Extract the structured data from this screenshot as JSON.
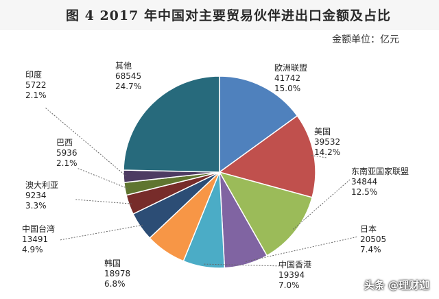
{
  "chart_data": {
    "type": "pie",
    "title": "图 4   2017 年中国对主要贸易伙伴进出口金额及占比",
    "subtitle": "金额单位：亿元",
    "slices": [
      {
        "name": "欧洲联盟",
        "value": 41742,
        "percent": "15.0%",
        "color": "#4f81bd"
      },
      {
        "name": "美国",
        "value": 39532,
        "percent": "14.2%",
        "color": "#c0504d"
      },
      {
        "name": "东南亚国家联盟",
        "value": 34844,
        "percent": "12.5%",
        "color": "#9bbb59"
      },
      {
        "name": "日本",
        "value": 20505,
        "percent": "7.4%",
        "color": "#8064a2"
      },
      {
        "name": "中国香港",
        "value": 19394,
        "percent": "7.0%",
        "color": "#4bacc6"
      },
      {
        "name": "韩国",
        "value": 18978,
        "percent": "6.8%",
        "color": "#f79646"
      },
      {
        "name": "中国台湾",
        "value": 13491,
        "percent": "4.9%",
        "color": "#2c4d75"
      },
      {
        "name": "澳大利亚",
        "value": 9234,
        "percent": "3.3%",
        "color": "#772c2a"
      },
      {
        "name": "巴西",
        "value": 5936,
        "percent": "2.1%",
        "color": "#5f7530"
      },
      {
        "name": "印度",
        "value": 5722,
        "percent": "2.1%",
        "color": "#4d3b62"
      },
      {
        "name": "其他",
        "value": 68545,
        "percent": "24.7%",
        "color": "#276a7c"
      }
    ]
  },
  "watermark": "头条 @理财迦"
}
